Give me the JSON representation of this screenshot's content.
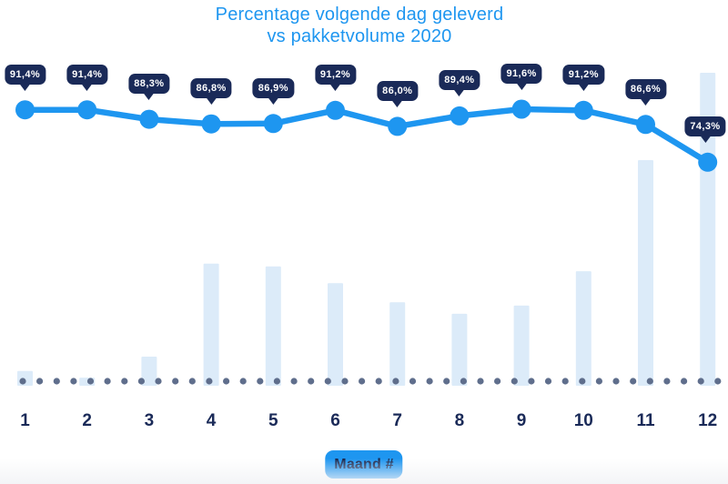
{
  "title": {
    "line1": "Percentage volgende dag geleverd",
    "line2": "vs pakketvolume 2020"
  },
  "x_axis": {
    "label_badge": "Maand #"
  },
  "colors": {
    "accent_blue": "#1e96f0",
    "navy": "#1a2a58",
    "bar_fill": "#dcebf9",
    "baseline_dot": "#5f6e8c",
    "tooltip_text": "#ffffff"
  },
  "chart_data": {
    "type": "combo-line-bar",
    "title": "Percentage volgende dag geleverd vs pakketvolume 2020",
    "xlabel": "Maand #",
    "ylabel": "",
    "legend": false,
    "gridlines": false,
    "baseline_style": "dotted",
    "categories": [
      "1",
      "2",
      "3",
      "4",
      "5",
      "6",
      "7",
      "8",
      "9",
      "10",
      "11",
      "12"
    ],
    "series": [
      {
        "name": "Percentage volgende dag geleverd",
        "type": "line",
        "unit": "%",
        "values": [
          91.4,
          91.4,
          88.3,
          86.8,
          86.9,
          91.2,
          86.0,
          89.4,
          91.6,
          91.2,
          86.6,
          74.3
        ],
        "point_labels": [
          "91,4%",
          "91,4%",
          "88,3%",
          "86,8%",
          "86,9%",
          "91,2%",
          "86,0%",
          "89,4%",
          "91,6%",
          "91,2%",
          "86,6%",
          "74,3%"
        ]
      },
      {
        "name": "Pakketvolume 2020",
        "type": "bar",
        "unit": "relative index (max month = 100)",
        "values": [
          4.7,
          2.6,
          9.3,
          39.0,
          38.1,
          32.8,
          26.7,
          23.0,
          25.6,
          36.6,
          72.1,
          100.0
        ]
      }
    ]
  }
}
